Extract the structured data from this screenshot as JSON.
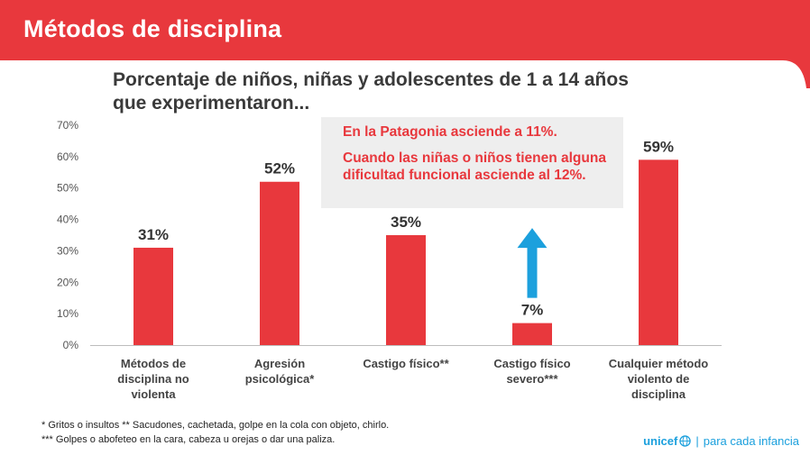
{
  "header": {
    "title": "Métodos de disciplina"
  },
  "subtitle": "Porcentaje de niños, niñas y adolescentes de 1 a 14 años que experimentaron...",
  "chart_data": {
    "type": "bar",
    "categories": [
      [
        "Métodos de",
        "disciplina no",
        "violenta"
      ],
      [
        "Agresión",
        "psicológica*"
      ],
      [
        "Castigo físico**"
      ],
      [
        "Castigo físico",
        "severo***"
      ],
      [
        "Cualquier método",
        "violento de",
        "disciplina"
      ]
    ],
    "values": [
      31,
      52,
      35,
      7,
      59
    ],
    "data_labels": [
      "31%",
      "52%",
      "35%",
      "7%",
      "59%"
    ],
    "y_ticks": [
      "0%",
      "10%",
      "20%",
      "30%",
      "40%",
      "50%",
      "60%",
      "70%"
    ],
    "ylim": [
      0,
      70
    ],
    "grid": false,
    "bar_color": "#e8383d",
    "arrow_color": "#1ca0dd",
    "arrow_from_category": 3,
    "arrow_target_value": 12
  },
  "note": {
    "line1": "En la Patagonia asciende a 11%.",
    "line2": "Cuando las niñas o niños tienen alguna dificultad funcional asciende al 12%."
  },
  "footnotes": {
    "line1": "* Gritos o insultos  ** Sacudones, cachetada, golpe en la cola con objeto, chirlo.",
    "line2": "*** Golpes o abofeteo en la cara, cabeza u orejas o dar una paliza."
  },
  "brand": {
    "name": "unicef",
    "tagline": "para cada infancia"
  },
  "colors": {
    "header": "#e8383d",
    "text": "#333333",
    "brand": "#1ca0dd"
  }
}
